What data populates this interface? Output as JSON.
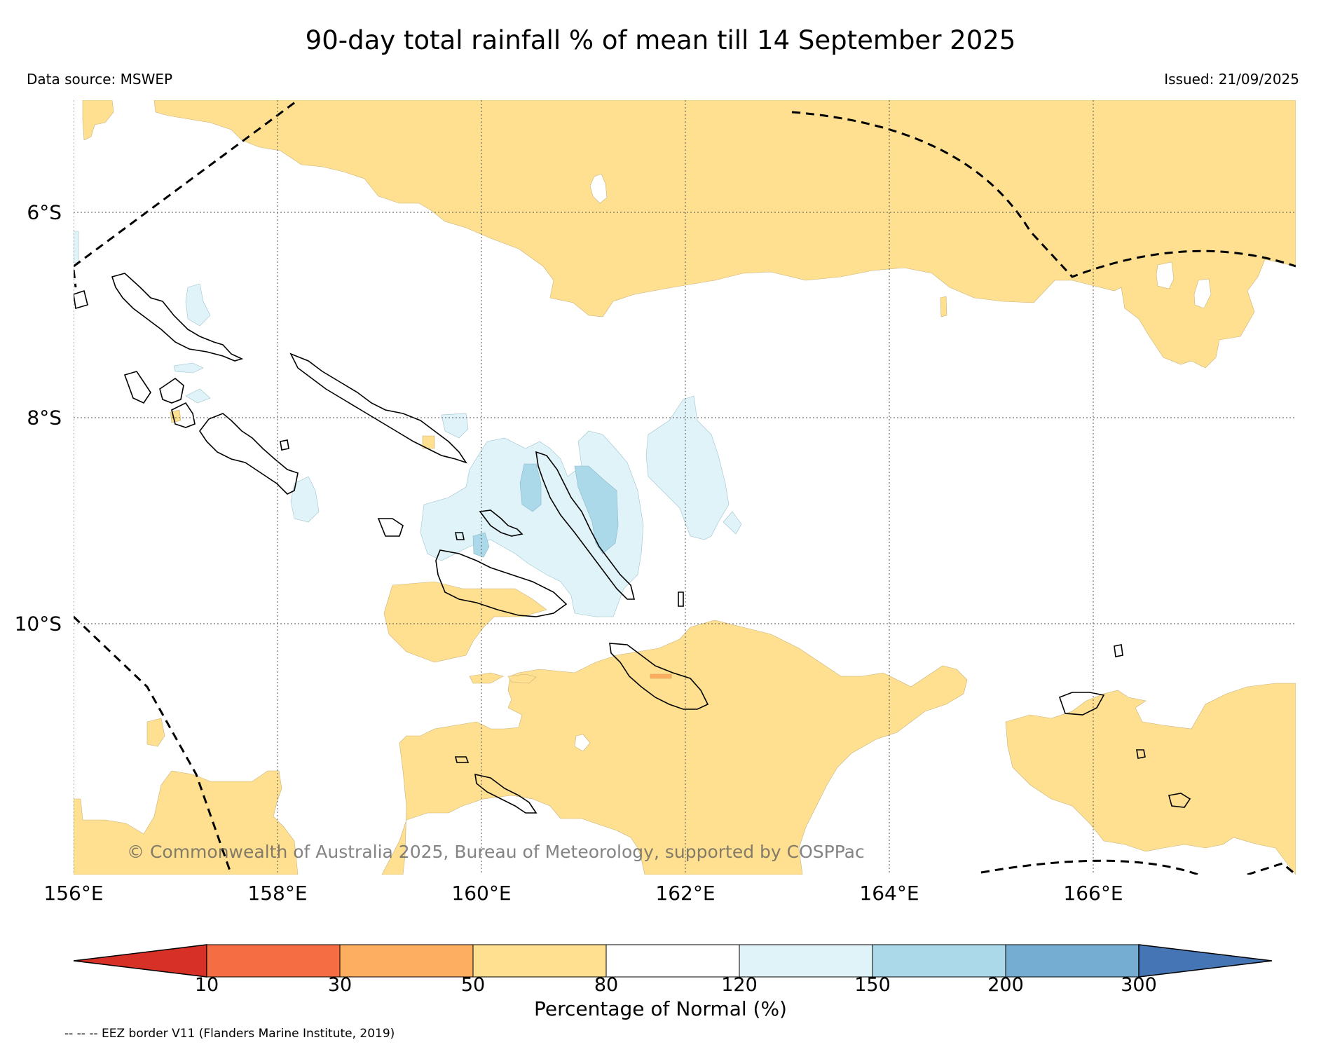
{
  "header": {
    "title": "90-day total rainfall % of mean till 14 September 2025",
    "data_source": "Data source: MSWEP",
    "issued": "Issued: 21/09/2025"
  },
  "map": {
    "longitude_labels": [
      "156°E",
      "158°E",
      "160°E",
      "162°E",
      "164°E",
      "166°E"
    ],
    "latitude_labels": [
      "6°S",
      "8°S",
      "10°S"
    ],
    "copyright": "© Commonwealth of Australia 2025, Bureau of Meteorology, supported by COSPPac"
  },
  "colorbar": {
    "ticks": [
      "10",
      "30",
      "50",
      "80",
      "120",
      "150",
      "200",
      "300"
    ],
    "label": "Percentage of Normal (%)",
    "colors": {
      "under": "#d73027",
      "c10_30": "#f46d43",
      "c30_50": "#fdae61",
      "c50_80": "#fee090",
      "c80_120": "#ffffff",
      "c120_150": "#e0f3f8",
      "c150_200": "#abd9e9",
      "c200_300": "#74add1",
      "over": "#4575b4"
    }
  },
  "footer": {
    "eez_note": "-- -- -- EEZ border V11 (Flanders Marine Institute, 2019)"
  }
}
